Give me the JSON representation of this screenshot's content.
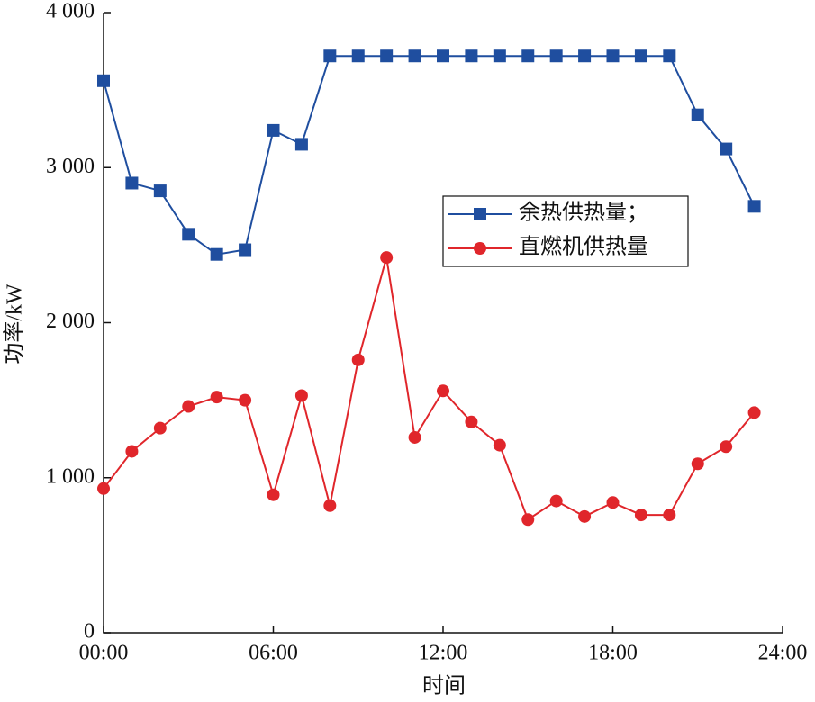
{
  "chart_data": {
    "type": "line",
    "x_label": "时间",
    "y_label": "功率/kW",
    "x": [
      0,
      1,
      2,
      3,
      4,
      5,
      6,
      7,
      8,
      9,
      10,
      11,
      12,
      13,
      14,
      15,
      16,
      17,
      18,
      19,
      20,
      21,
      22,
      23
    ],
    "xlim": [
      0,
      24
    ],
    "xticks": [
      {
        "value": 0,
        "label": "00:00"
      },
      {
        "value": 6,
        "label": "06:00"
      },
      {
        "value": 12,
        "label": "12:00"
      },
      {
        "value": 18,
        "label": "18:00"
      },
      {
        "value": 24,
        "label": "24:00"
      }
    ],
    "ylim": [
      0,
      4000
    ],
    "yticks": [
      0,
      {
        "value": 1000,
        "label": "1 000"
      },
      {
        "value": 2000,
        "label": "2 000"
      },
      {
        "value": 3000,
        "label": "3 000"
      },
      {
        "value": 4000,
        "label": "4 000"
      }
    ],
    "legend": "upper right",
    "series": [
      {
        "name": "余热供热量；",
        "color": "#1f4e9f",
        "marker": "square",
        "values": [
          3560,
          2900,
          2850,
          2570,
          2440,
          2470,
          3240,
          3150,
          3720,
          3720,
          3720,
          3720,
          3720,
          3720,
          3720,
          3720,
          3720,
          3720,
          3720,
          3720,
          3720,
          3340,
          3120,
          2750
        ]
      },
      {
        "name": "直燃机供热量",
        "color": "#e0262b",
        "marker": "circle",
        "values": [
          930,
          1170,
          1320,
          1460,
          1520,
          1500,
          890,
          1530,
          820,
          1760,
          2420,
          1260,
          1560,
          1360,
          1210,
          730,
          850,
          750,
          840,
          760,
          760,
          1090,
          1200,
          1420
        ]
      }
    ]
  }
}
